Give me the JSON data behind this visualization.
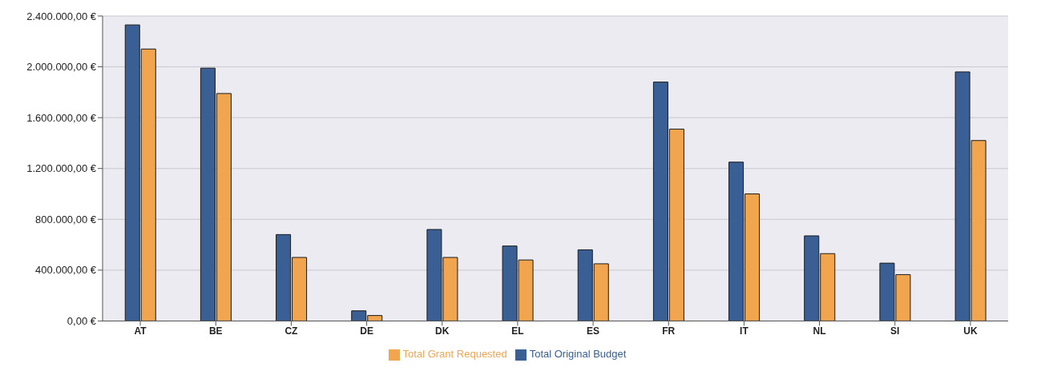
{
  "chart_data": {
    "type": "bar",
    "categories": [
      "AT",
      "BE",
      "CZ",
      "DE",
      "DK",
      "EL",
      "ES",
      "FR",
      "IT",
      "NL",
      "SI",
      "UK"
    ],
    "series": [
      {
        "name": "Total Original Budget",
        "color": "#3a5f94",
        "values": [
          2330000,
          1990000,
          680000,
          80000,
          720000,
          590000,
          560000,
          1880000,
          1250000,
          670000,
          455000,
          1960000
        ]
      },
      {
        "name": "Total Grant Requested",
        "color": "#f0a54e",
        "values": [
          2140000,
          1790000,
          500000,
          43000,
          500000,
          480000,
          450000,
          1510000,
          1000000,
          530000,
          365000,
          1420000
        ]
      }
    ],
    "ylim": [
      0,
      2400000
    ],
    "yticks": [
      {
        "value": 0,
        "label": "0,00 €"
      },
      {
        "value": 400000,
        "label": "400.000,00 €"
      },
      {
        "value": 800000,
        "label": "800.000,00 €"
      },
      {
        "value": 1200000,
        "label": "1.200.000,00 €"
      },
      {
        "value": 1600000,
        "label": "1.600.000,00 €"
      },
      {
        "value": 2000000,
        "label": "2.000.000,00 €"
      },
      {
        "value": 2400000,
        "label": "2.400.000,00 €"
      }
    ],
    "grid": "y",
    "legend": "bottom"
  }
}
